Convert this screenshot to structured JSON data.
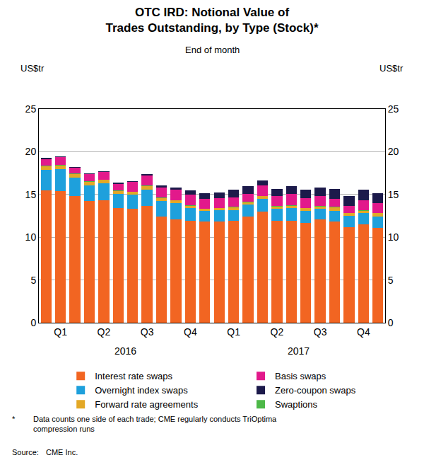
{
  "chart_data": {
    "type": "bar",
    "stacked": true,
    "title": [
      "OTC IRD: Notional Value of",
      "Trades Outstanding, by Type (Stock)*"
    ],
    "subtitle": "End of month",
    "y_label": "US$tr",
    "y2_label": "US$tr",
    "categories": [
      null,
      "Q1",
      null,
      null,
      "Q2",
      null,
      null,
      "Q3",
      null,
      null,
      "Q4",
      null,
      null,
      "Q1",
      null,
      null,
      "Q2",
      null,
      null,
      "Q3",
      null,
      null,
      "Q4",
      null
    ],
    "annotations": [
      {
        "text": "2016",
        "x": 5.5
      },
      {
        "text": "2017",
        "x": 17.5
      }
    ],
    "series": [
      {
        "name": "Interest rate swaps",
        "color": "#f26522",
        "values": [
          15.5,
          15.4,
          14.8,
          14.2,
          14.3,
          13.4,
          13.3,
          13.7,
          12.4,
          12.1,
          11.9,
          11.8,
          11.8,
          11.9,
          12.4,
          13.0,
          11.9,
          11.9,
          11.7,
          12.1,
          11.8,
          11.2,
          11.5,
          11.1
        ]
      },
      {
        "name": "Overnight index swaps",
        "color": "#1ea0dc",
        "values": [
          2.4,
          2.6,
          2.2,
          1.9,
          2.0,
          1.7,
          1.7,
          1.9,
          1.8,
          1.9,
          1.5,
          1.3,
          1.4,
          1.3,
          1.4,
          1.5,
          1.4,
          1.5,
          1.4,
          1.2,
          1.3,
          1.3,
          1.3,
          1.3
        ]
      },
      {
        "name": "Forward rate agreements",
        "color": "#e3a826",
        "values": [
          0.4,
          0.4,
          0.4,
          0.4,
          0.4,
          0.3,
          0.3,
          0.4,
          0.4,
          0.3,
          0.3,
          0.2,
          0.2,
          0.3,
          0.3,
          0.3,
          0.3,
          0.3,
          0.3,
          0.3,
          0.4,
          0.3,
          0.3,
          0.4
        ]
      },
      {
        "name": "Swaptions",
        "color": "#4db848",
        "values": [
          0.05,
          0.05,
          0.05,
          0.05,
          0.05,
          0.05,
          0.05,
          0.05,
          0.05,
          0.05,
          0.05,
          0.05,
          0.05,
          0.05,
          0.05,
          0.05,
          0.05,
          0.05,
          0.05,
          0.05,
          0.05,
          0.05,
          0.05,
          0.05
        ]
      },
      {
        "name": "Basis swaps",
        "color": "#e2198b",
        "values": [
          0.8,
          0.9,
          0.7,
          0.8,
          0.9,
          0.8,
          1.1,
          1.2,
          1.2,
          1.2,
          1.2,
          1.1,
          1.1,
          1.1,
          0.9,
          1.2,
          1.2,
          1.3,
          1.1,
          1.2,
          0.9,
          0.8,
          1.2,
          1.1
        ]
      },
      {
        "name": "Zero-coupon swaps",
        "color": "#1c1a4b",
        "values": [
          0.1,
          0.1,
          0.1,
          0.1,
          0.1,
          0.1,
          0.1,
          0.1,
          0.2,
          0.3,
          0.5,
          0.7,
          0.7,
          0.9,
          0.9,
          0.6,
          0.8,
          0.9,
          1.0,
          1.0,
          1.2,
          1.2,
          1.2,
          1.2
        ]
      }
    ],
    "ylim": [
      0,
      25
    ],
    "yticks": [
      0,
      5,
      10,
      15,
      20,
      25
    ],
    "y2lim": [
      0,
      25
    ],
    "y2ticks": [
      0,
      5,
      10,
      15,
      20,
      25
    ],
    "grid": true,
    "legend": "bottom",
    "footnote_marker": "*",
    "footnote": [
      "Data counts one side of each trade; CME regularly conducts TriOptima",
      "compression runs"
    ],
    "source_label": "Source:",
    "source": "CME Inc."
  }
}
